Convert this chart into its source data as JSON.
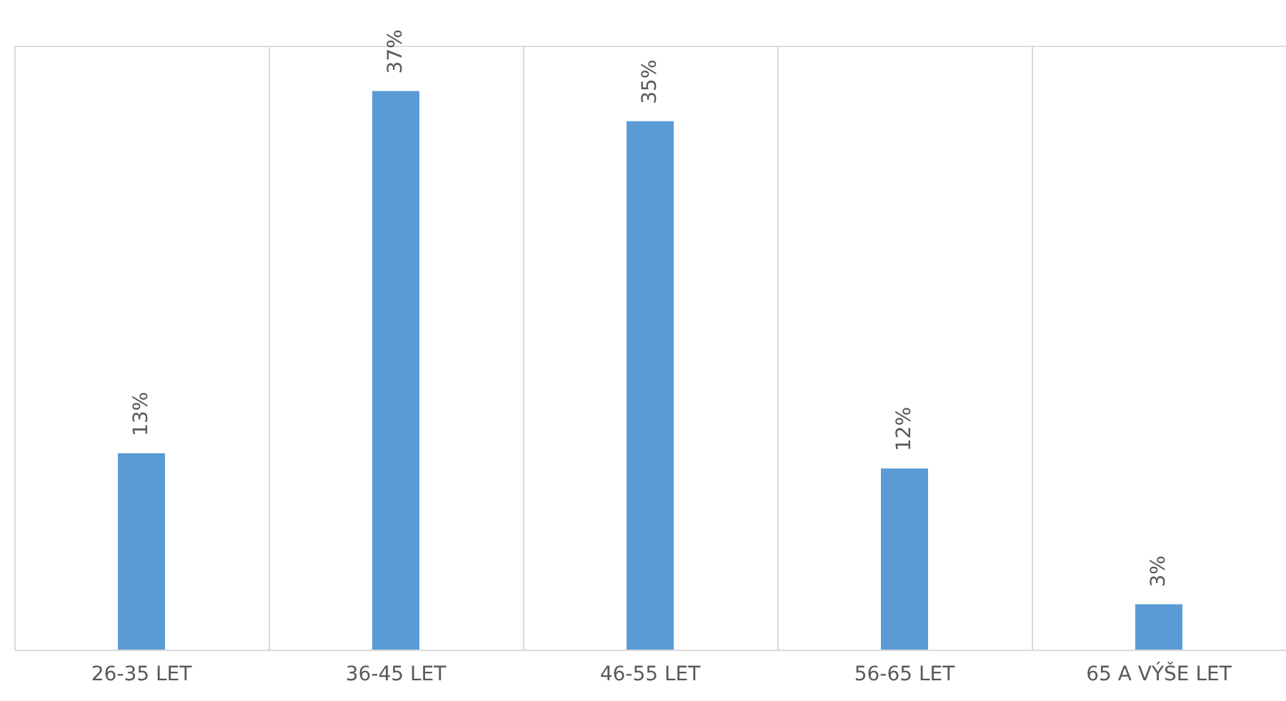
{
  "chart_data": {
    "type": "bar",
    "categories": [
      "26-35 LET",
      "36-45 LET",
      "46-55 LET",
      "56-65 LET",
      "65 A VÝŠE LET"
    ],
    "values": [
      13,
      37,
      35,
      12,
      3
    ],
    "value_labels": [
      "13%",
      "37%",
      "35%",
      "12%",
      "3%"
    ],
    "color": "#5b9bd5",
    "ylim": [
      0,
      40
    ],
    "grid": "x",
    "tick_labels": "x"
  }
}
